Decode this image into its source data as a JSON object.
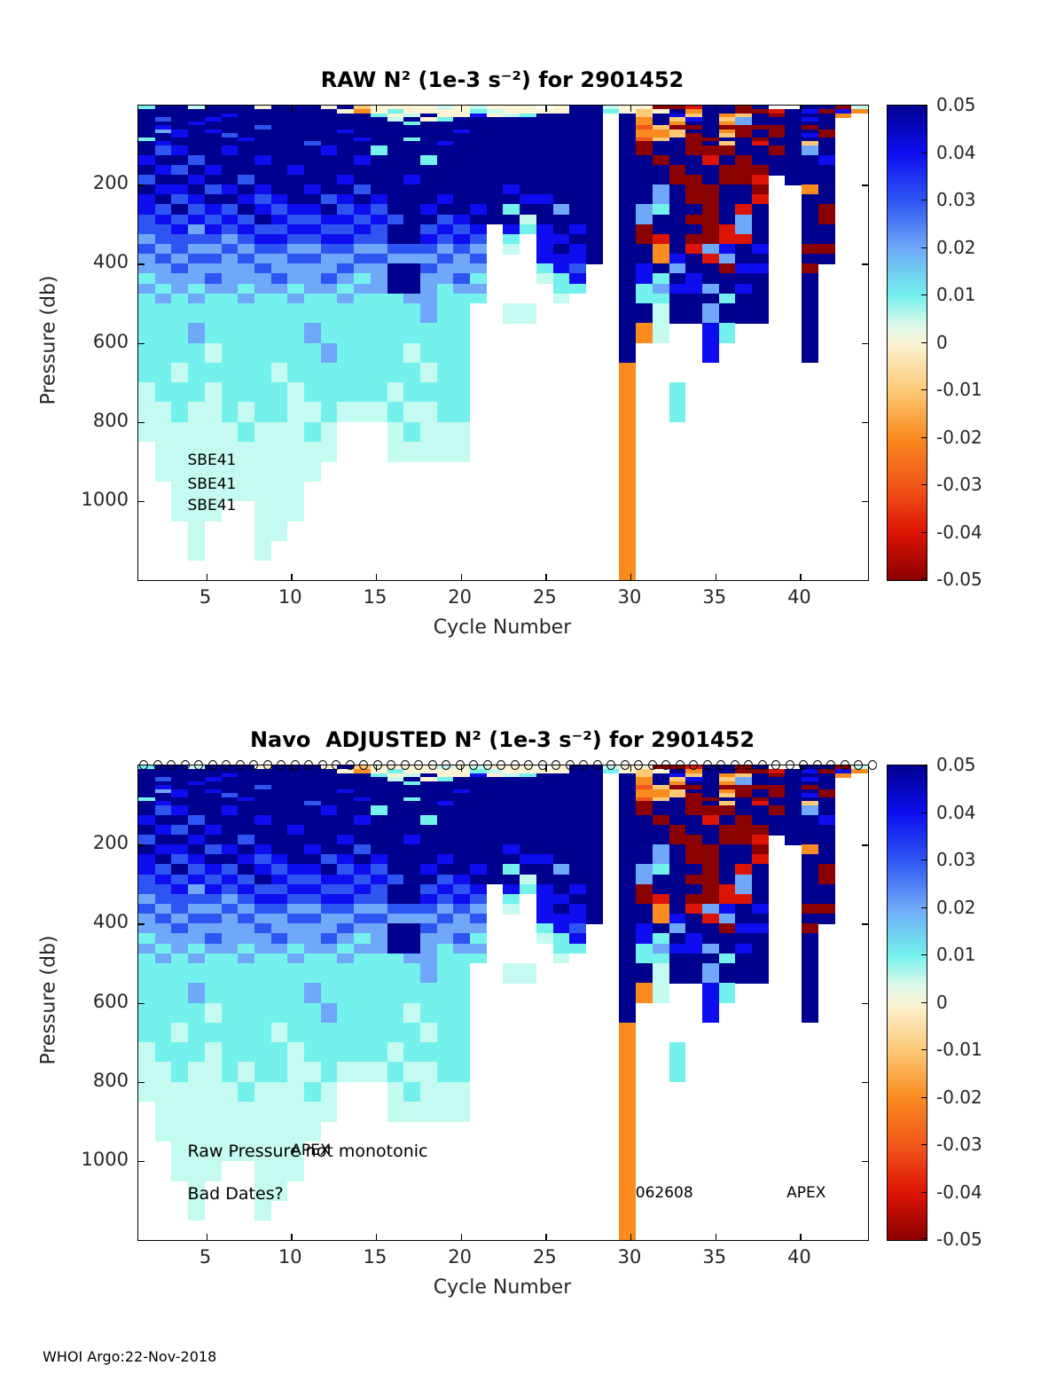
{
  "page": {
    "footer": "WHOI Argo:22-Nov-2018"
  },
  "colorbar": {
    "ticks": [
      "0.05",
      "0.04",
      "0.03",
      "0.02",
      "0.01",
      "0",
      "-0.01",
      "-0.02",
      "-0.03",
      "-0.04",
      "-0.05"
    ],
    "gradient_stops": [
      "#00008F 0%",
      "#0D0DF0 10%",
      "#2E55F2 20%",
      "#6FA8F8 30%",
      "#74F1EC 40%",
      "#D8F8EA 46%",
      "#FAF4D5 50%",
      "#FDC977 60%",
      "#F98B1F 70%",
      "#F2571A 80%",
      "#DC1405 90%",
      "#8B0000 100%"
    ]
  },
  "chart_data": [
    {
      "type": "heatmap",
      "title": "RAW N² (1e-3 s⁻²) for 2901452",
      "xlabel": "Cycle Number",
      "ylabel": "Pressure (db)",
      "x_ticks": [
        5,
        10,
        15,
        20,
        25,
        30,
        35,
        40
      ],
      "y_ticks": [
        200,
        400,
        600,
        800,
        1000
      ],
      "x_range": [
        1,
        44
      ],
      "y_range_db": [
        0,
        1200
      ],
      "grid": "on-shared",
      "legend_position": "right-colorbar",
      "has_circle_markers": false,
      "annotations": [
        {
          "text": "SBE41",
          "cycle": 3.9,
          "pressure": 900,
          "size": 17
        },
        {
          "text": "SBE41",
          "cycle": 3.9,
          "pressure": 960,
          "size": 17
        },
        {
          "text": "SBE41",
          "cycle": 3.9,
          "pressure": 1013,
          "size": 17
        }
      ]
    },
    {
      "type": "heatmap",
      "title": "Navo  ADJUSTED N² (1e-3 s⁻²) for 2901452",
      "xlabel": "Cycle Number",
      "ylabel": "Pressure (db)",
      "x_ticks": [
        5,
        10,
        15,
        20,
        25,
        30,
        35,
        40
      ],
      "y_ticks": [
        200,
        400,
        600,
        800,
        1000
      ],
      "x_range": [
        1,
        44
      ],
      "y_range_db": [
        0,
        1200
      ],
      "grid": "on-shared",
      "legend_position": "right-colorbar",
      "has_circle_markers": true,
      "n_markers": 54,
      "annotations": [
        {
          "text": "Raw Pressure not monotonic",
          "cycle": 3.9,
          "pressure": 976,
          "size": 19
        },
        {
          "text": "APEX",
          "cycle": 10.0,
          "pressure": 976,
          "size": 17
        },
        {
          "text": "Bad Dates?",
          "cycle": 3.9,
          "pressure": 1083,
          "size": 19
        },
        {
          "text": "062608",
          "cycle": 30.3,
          "pressure": 1083,
          "size": 17
        },
        {
          "text": "APEX",
          "cycle": 39.2,
          "pressure": 1083,
          "size": 17
        }
      ]
    }
  ],
  "shared_grid": {
    "n_columns": 44,
    "column_cycles_start": 1,
    "row_edges_db": [
      0,
      10,
      20,
      30,
      40,
      50,
      60,
      70,
      80,
      90,
      100,
      125,
      150,
      175,
      200,
      225,
      250,
      275,
      300,
      325,
      350,
      375,
      400,
      425,
      450,
      475,
      500,
      550,
      600,
      650,
      700,
      750,
      800,
      850,
      900,
      950,
      1000,
      1050,
      1100,
      1150,
      1200
    ],
    "code_values": {
      "A": 0.05,
      "B": 0.04,
      "C": 0.03,
      "D": 0.02,
      "E": 0.01,
      "F": 0.005,
      "G": 0,
      "H": -0.01,
      "I": -0.02,
      "J": -0.03,
      "K": -0.04,
      "L": -0.05,
      ".": null
    },
    "code_colors": {
      "A": "#00008F",
      "B": "#0D0DF0",
      "C": "#2E55F2",
      "D": "#6FA8F8",
      "E": "#74F1EC",
      "F": "#C4FAEF",
      "G": "#FAF4D5",
      "H": "#FDC977",
      "I": "#F98B1F",
      "J": "#F2571A",
      "K": "#DC1405",
      "L": "#8B0000",
      ".": ""
    },
    "rows": [
      "EAAFAAAGAAAGAHGGGGFGFGGG.GAAFGGLLKAALA..AALF",
      "AAAAAAAAAAAAGIGEGGGGEFGGGGAAEGHGAIAALLKABLBI",
      "AAAAABAAAAAAAAEGFAGGBGFEAAAA.AHABHAIHALAAAI.",
      "ACAABAAAAAAAAAAFAGEAAAAAAAAA.AIAHBAHDAAABA..",
      "AAABAAAAAAAAAAAAEAAAAAAAAAAA.AIAIAAIDAAAAA..",
      "ABAAAAACAAAAAAAAAAAAAAAAAAAA.AJHLLALLLLALA..",
      "ADBABAAAAAAABAAAAAABAAAAAAAA.AIIHAAILALAAL..",
      "AABAACAAAAAAAAAAAAAAAAAAAAAA.AIIHLAHLALABL..",
      "EAAAAABAAAAAABAAEAAAAAAAAAAA.AJHALLAALAAAA..",
      "ABAAAAAAAACAAAAAAABAAAAAAAAA.ALAALAHAKAAHA..",
      "ACBAABAAAAABAAEAAAAAAAAAAAAA.ALAALLLAALADA..",
      "BAACAAABAAAAABAAAEAAAAAAAAAA.AALAAKALAAAAB..",
      "ABCABAAAABAAAAAAAAAAAAAAAAAA.AAALAALLLAAAA..",
      "CAABAACAAAAABAAABAAAAAAAAAAA.AAALLALLK.AAA..",
      "ABBACBABAABAACAAAAAAAABAAAAA.AADALLAAL..IA..",
      "BACBAABCBAACBABAAABAAAABBAAA.AADALLAAK..AA..",
      "BCACBCABCBBACBCAABAABAEAADAA.ADEAALAKA..AL..",
      "CBCBCBCABCCBBCBCAACBAAAFAAAA.ADAALLADA..AL..",
      "CCBDBCBCCBBCCBCAACBCB.BEBABA.ALAAALKDA..AA..",
      "DCCCCDCBBCCBBCCAABCBC.E.BBAA.ALKALLKKA..AA..",
      "CDCDDCDCCDDCCDDCCCDCD.F.BABA.AAIAKDBAB..LL..",
      "DCDCCDCDDCCDDCCDDDCDC...BBBA.AAIBAKDAA..AA..",
      "DDCDDDDCDDDDCDDAACDDD...EBC..ABADAALBB..L...",
      "EDDDCDDDCDDCDEDAADDCE...FEB..ABEABAAAA..A...",
      "DEDEDDEDDEDDEDDAADEDD....EE..AEDBBDABA..A...",
      "EDEDEEDEEDEEDEEEDDEEE....F...AEEAAAEAA..A...",
      "EEEEEEEEEEEEEEEEEDEE..FF.....AAFAADAAA..A...",
      "EEEDEEEEEEDEEEEEEEEE.........AIF..BE....A...",
      "EEEEFEEEEEEDEEEEFEEE.........A....B.....A...",
      "EEFEEEEEFEEEEEEEEFEE.........I..............",
      "FEEEFEEEEFEEEEEFEEEE.........I..E...........",
      "FFEFFEFEEFFEFFFEFFEE.........I..E...........",
      "FFFFFFEFFFEF...FEFFF.........I..............",
      ".FFFFFFFFFFF...FFFFF.........I..............",
      ".FFFFFFFFFF..................I..............",
      "..FFFFFFFF...................I..............",
      "..FFF..FFF...................I..............",
      "...F...FF....................I..............",
      "...F...F.....................I..............",
      ".............................I.............."
    ]
  }
}
